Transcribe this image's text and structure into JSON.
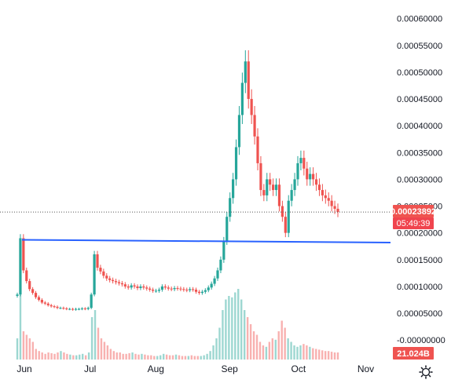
{
  "chart_data": {
    "type": "candlestick",
    "x_ticks": [
      "Jun",
      "Jul",
      "Aug",
      "Sep",
      "Oct",
      "Nov"
    ],
    "y_ticks": [
      "0.00060000",
      "0.00055000",
      "0.00050000",
      "0.00045000",
      "0.00040000",
      "0.00035000",
      "0.00030000",
      "0.00025000",
      "0.00020000",
      "0.00015000",
      "0.00010000",
      "0.00005000",
      "-0.00000000"
    ],
    "ylim": [
      -1e-05,
      0.00062
    ],
    "grid": false,
    "current_price_label": "0.00023892",
    "countdown_label": "05:49:39",
    "volume_label": "21.024B",
    "current_price": 0.00023892,
    "colors": {
      "up": "#26a69a",
      "down": "#ef5350",
      "trendline": "#2962ff",
      "price_tag": "#ef5350",
      "timer_tag": "#f0444e",
      "volume_tag": "#ef5350"
    },
    "trendline": {
      "from": [
        "Jun",
        0.000187
      ],
      "to": [
        "Nov+",
        0.000182
      ]
    },
    "ohlc_path": [
      8.5e-05,
      0.00019,
      0.00013,
      0.00011,
      9.5e-05,
      8.8e-05,
      8e-05,
      7.5e-05,
      7e-05,
      6.8e-05,
      6.5e-05,
      6.3e-05,
      6.2e-05,
      6e-05,
      6e-05,
      5.9e-05,
      5.8e-05,
      5.8e-05,
      5.7e-05,
      5.8e-05,
      5.8e-05,
      5.9e-05,
      5.8e-05,
      6e-05,
      8.5e-05,
      0.00016,
      0.000135,
      0.000128,
      0.00012,
      0.000115,
      0.000112,
      0.00011,
      0.000108,
      0.000106,
      0.000104,
      0.0001,
      9.8e-05,
      0.000102,
      0.0001,
      9.7e-05,
      0.0001,
      9.8e-05,
      9.6e-05,
      9.4e-05,
      9.2e-05,
      9.2e-05,
      9.4e-05,
      0.0001,
      9.8e-05,
      9.6e-05,
      9.5e-05,
      9.7e-05,
      9.6e-05,
      9.5e-05,
      9.4e-05,
      9.3e-05,
      9.5e-05,
      9.4e-05,
      9e-05,
      8.8e-05,
      9e-05,
      9.3e-05,
      9.8e-05,
      0.000105,
      0.000115,
      0.00013,
      0.00015,
      0.000185,
      0.00023,
      0.000265,
      0.0003,
      0.00036,
      0.00042,
      0.00048,
      0.00052,
      0.00045,
      0.00042,
      0.00038,
      0.00033,
      0.00028,
      0.00027,
      0.0003,
      0.00029,
      0.00028,
      0.00029,
      0.00025,
      0.00023,
      0.0002,
      0.00026,
      0.00028,
      0.0003,
      0.00033,
      0.00034,
      0.00032,
      0.0003,
      0.00031,
      0.0003,
      0.00029,
      0.00028,
      0.00027,
      0.000265,
      0.00026,
      0.00025,
      0.000245,
      0.000239
    ],
    "volume": [
      0.3,
      0.92,
      0.4,
      0.35,
      0.3,
      0.25,
      0.15,
      0.12,
      0.1,
      0.08,
      0.1,
      0.09,
      0.08,
      0.1,
      0.12,
      0.1,
      0.08,
      0.07,
      0.06,
      0.06,
      0.07,
      0.08,
      0.06,
      0.1,
      0.6,
      0.7,
      0.45,
      0.3,
      0.25,
      0.2,
      0.15,
      0.12,
      0.1,
      0.1,
      0.08,
      0.08,
      0.09,
      0.1,
      0.08,
      0.07,
      0.08,
      0.07,
      0.06,
      0.06,
      0.05,
      0.05,
      0.06,
      0.08,
      0.07,
      0.06,
      0.06,
      0.07,
      0.06,
      0.05,
      0.05,
      0.05,
      0.06,
      0.05,
      0.05,
      0.05,
      0.06,
      0.08,
      0.12,
      0.2,
      0.3,
      0.45,
      0.7,
      0.85,
      0.9,
      0.88,
      0.95,
      1.0,
      0.85,
      0.7,
      0.6,
      0.5,
      0.4,
      0.35,
      0.25,
      0.2,
      0.18,
      0.25,
      0.3,
      0.28,
      0.4,
      0.55,
      0.45,
      0.3,
      0.25,
      0.2,
      0.18,
      0.2,
      0.22,
      0.2,
      0.18,
      0.16,
      0.15,
      0.14,
      0.13,
      0.12,
      0.12,
      0.11,
      0.1,
      0.1
    ]
  }
}
